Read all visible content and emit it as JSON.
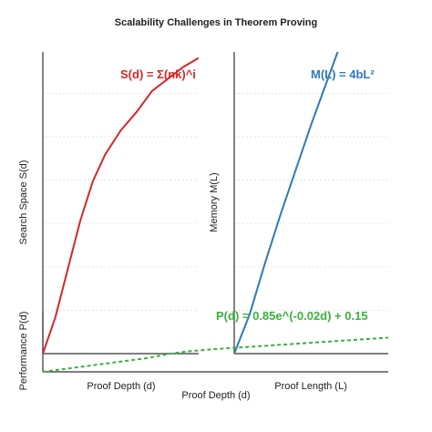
{
  "chart_data": {
    "title": "Scalability Challenges in Theorem Proving",
    "shared_xlabel": "Proof Depth (d)",
    "panels": [
      {
        "type": "line",
        "xlabel": "Proof Depth (d)",
        "ylabel": "Search Space S(d)",
        "annotation": "S(d) = Σ(nk)^i",
        "series": [
          {
            "color": "#d62728",
            "style": "solid",
            "points": [
              [
                0,
                0.0
              ],
              [
                0.08,
                0.12
              ],
              [
                0.16,
                0.28
              ],
              [
                0.24,
                0.44
              ],
              [
                0.32,
                0.57
              ],
              [
                0.4,
                0.66
              ],
              [
                0.5,
                0.74
              ],
              [
                0.6,
                0.8
              ],
              [
                0.7,
                0.87
              ],
              [
                0.8,
                0.91
              ],
              [
                0.9,
                0.95
              ],
              [
                1.0,
                0.98
              ]
            ]
          }
        ],
        "grid": true
      },
      {
        "type": "line",
        "xlabel": "Proof Length (L)",
        "ylabel": "Memory M(L)",
        "annotation": "M(L) = 4bL²",
        "series": [
          {
            "color": "#2e7ab8",
            "style": "solid",
            "points": [
              [
                0,
                0.0
              ],
              [
                0.1,
                0.13
              ],
              [
                0.2,
                0.3
              ],
              [
                0.3,
                0.46
              ],
              [
                0.4,
                0.61
              ],
              [
                0.5,
                0.76
              ],
              [
                0.6,
                0.9
              ],
              [
                0.7,
                1.04
              ],
              [
                0.8,
                1.12
              ],
              [
                0.9,
                1.19
              ],
              [
                1.0,
                1.25
              ]
            ]
          }
        ],
        "grid": true
      },
      {
        "type": "line",
        "xlabel": "",
        "ylabel": "Performance P(d)",
        "annotation": "P(d) = 0.85e^(-0.02d) + 0.15",
        "series": [
          {
            "color": "#3cb03c",
            "style": "dashed",
            "points": [
              [
                0,
                0.0
              ],
              [
                0.1,
                0.1
              ],
              [
                0.2,
                0.2
              ],
              [
                0.3,
                0.3
              ],
              [
                0.37,
                0.4
              ],
              [
                0.42,
                0.45
              ],
              [
                0.5,
                0.5
              ],
              [
                0.6,
                0.55
              ],
              [
                0.7,
                0.6
              ],
              [
                0.8,
                0.65
              ],
              [
                0.9,
                0.7
              ],
              [
                1.0,
                0.75
              ]
            ]
          }
        ],
        "grid": false
      }
    ]
  }
}
